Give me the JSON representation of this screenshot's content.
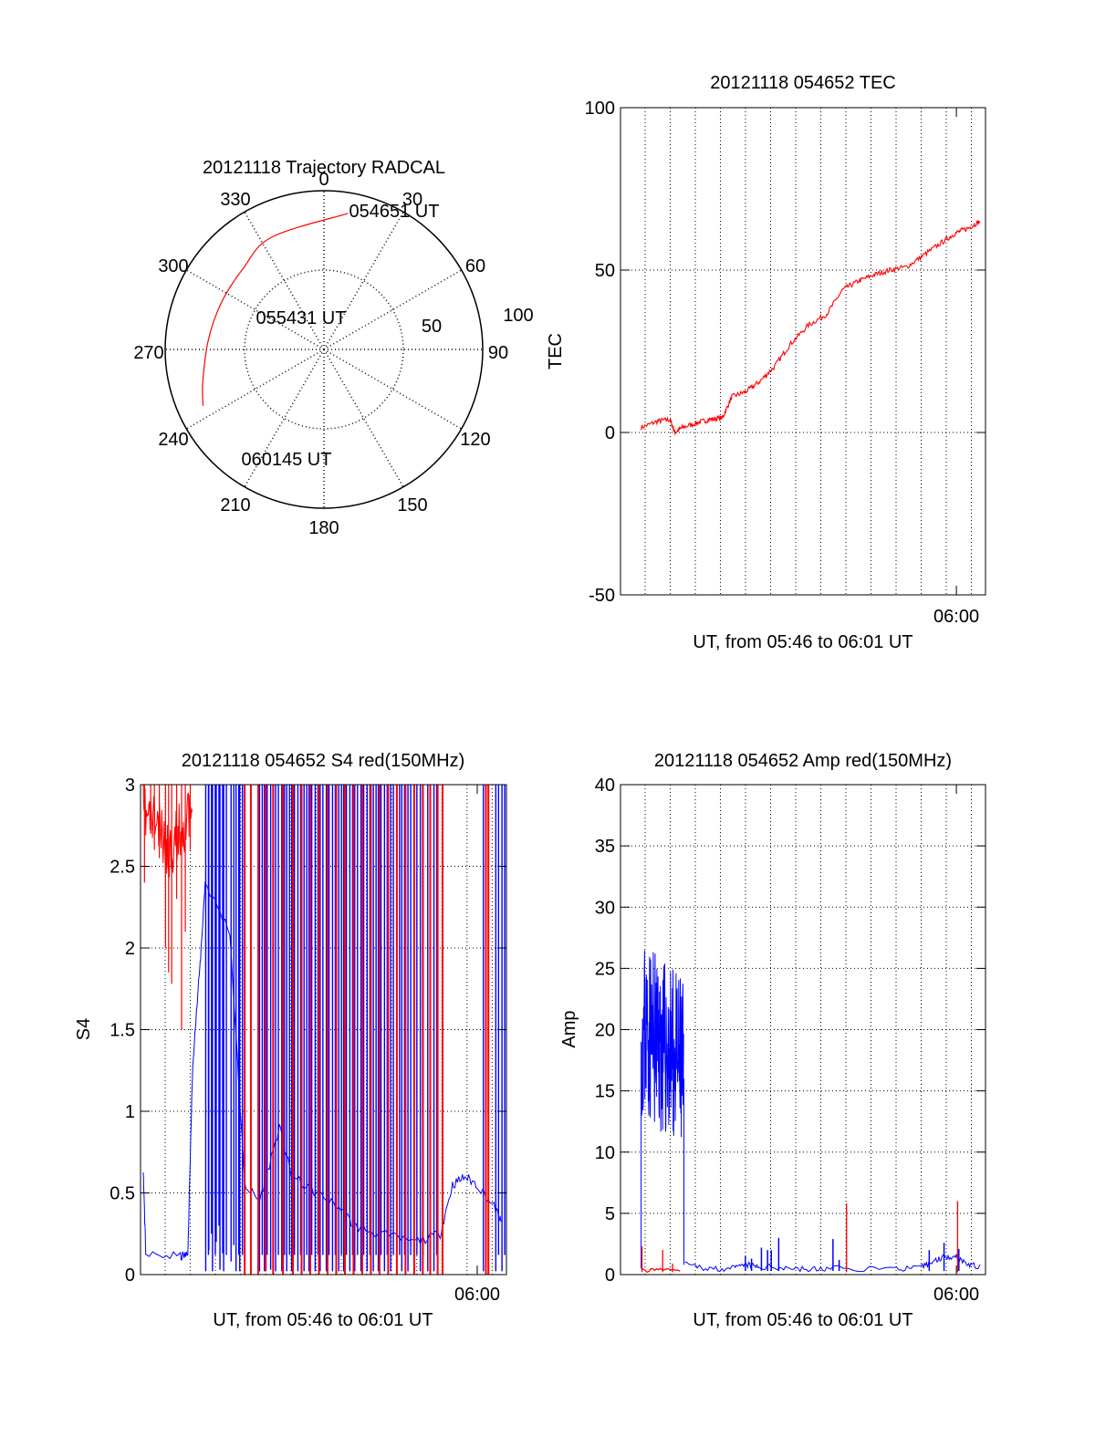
{
  "chart_data": [
    {
      "id": "polar",
      "type": "scatter",
      "title": "20121118 Trajectory RADCAL",
      "azimuth_labels": [
        "0",
        "30",
        "60",
        "90",
        "120",
        "150",
        "180",
        "210",
        "240",
        "270",
        "300",
        "330"
      ],
      "radial_labels": [
        "50",
        "100"
      ],
      "rlim": [
        0,
        100
      ],
      "grid": true,
      "series": [
        {
          "color": "#ff0000",
          "points": [
            {
              "az": 10,
              "r": 87
            },
            {
              "az": 335,
              "r": 78
            },
            {
              "az": 315,
              "r": 72
            },
            {
              "az": 295,
              "r": 71
            },
            {
              "az": 275,
              "r": 73
            },
            {
              "az": 255,
              "r": 79
            },
            {
              "az": 245,
              "r": 84
            }
          ]
        }
      ],
      "annotations": [
        {
          "text": "054651 UT",
          "az": 18,
          "r": 88
        },
        {
          "text": "055431 UT",
          "az": 299,
          "r": 16
        },
        {
          "text": "060145 UT",
          "az": 221,
          "r": 75
        }
      ]
    },
    {
      "id": "tec",
      "type": "line",
      "title": "20121118 054652 TEC",
      "xlabel": "UT, from 05:46 to 06:01 UT",
      "ylabel": "TEC",
      "xlim": [
        5.7278,
        6.0236
      ],
      "ylim": [
        -50,
        100
      ],
      "yticks": [
        "-50",
        "0",
        "50",
        "100"
      ],
      "xticks": [
        {
          "value": 6.0,
          "label": "06:00"
        }
      ],
      "grid": true,
      "series": [
        {
          "color": "#ff0000",
          "x": [
            5.7445,
            5.758,
            5.768,
            5.7718,
            5.7778,
            5.79,
            5.8,
            5.8105,
            5.818,
            5.829,
            5.84,
            5.852,
            5.865,
            5.88,
            5.895,
            5.908,
            5.92,
            5.933,
            5.946,
            5.96,
            5.975,
            5.99,
            6.0,
            6.01,
            6.019
          ],
          "values": [
            1.5,
            3.5,
            4.0,
            0.0,
            1.5,
            3.0,
            4.0,
            4.5,
            11.0,
            12.5,
            15.5,
            20.0,
            27.0,
            33.0,
            36.5,
            44.0,
            46.5,
            48.5,
            50.0,
            51.0,
            55.0,
            59.0,
            61.5,
            63.0,
            65.0
          ]
        }
      ]
    },
    {
      "id": "s4",
      "type": "line",
      "title": "20121118 054652 S4 red(150MHz)",
      "xlabel": "UT, from 05:46 to 06:01 UT",
      "ylabel": "S4",
      "xlim": [
        5.7278,
        6.0236
      ],
      "ylim": [
        0,
        3
      ],
      "yticks": [
        "0",
        "0.5",
        "1",
        "1.5",
        "2",
        "2.5",
        "3"
      ],
      "xticks": [
        {
          "value": 6.0,
          "label": "06:00"
        }
      ],
      "grid": true,
      "series": [
        {
          "color": "#0000ff",
          "base": [
            [
              5.73,
              0.65
            ],
            [
              5.732,
              0.12
            ],
            [
              5.76,
              0.11
            ],
            [
              5.766,
              0.12
            ],
            [
              5.77,
              1.3
            ],
            [
              5.776,
              1.9
            ],
            [
              5.78,
              2.4
            ],
            [
              5.8,
              2.1
            ],
            [
              5.812,
              0.55
            ],
            [
              5.824,
              0.45
            ],
            [
              5.84,
              0.9
            ],
            [
              5.85,
              0.6
            ],
            [
              5.87,
              0.5
            ],
            [
              5.89,
              0.4
            ],
            [
              5.9,
              0.3
            ],
            [
              5.92,
              0.25
            ],
            [
              5.95,
              0.2
            ],
            [
              5.97,
              0.25
            ],
            [
              5.98,
              0.55
            ],
            [
              5.99,
              0.6
            ],
            [
              6.0,
              0.55
            ],
            [
              6.015,
              0.4
            ],
            [
              6.02,
              0.3
            ]
          ],
          "spikes": [
            [
              5.7805,
              0.02
            ],
            [
              5.783,
              0.15
            ],
            [
              5.786,
              0.02
            ],
            [
              5.789,
              0.2
            ],
            [
              5.792,
              0.03
            ],
            [
              5.795,
              0.02
            ],
            [
              5.801,
              0.08
            ],
            [
              5.805,
              0.02
            ],
            [
              5.808,
              0.02
            ],
            [
              5.824,
              0.02
            ],
            [
              5.828,
              0.02
            ],
            [
              5.833,
              0.03
            ],
            [
              5.837,
              0.02
            ],
            [
              5.842,
              0.02
            ],
            [
              5.846,
              0.02
            ],
            [
              5.85,
              0.02
            ],
            [
              5.855,
              0.02
            ],
            [
              5.86,
              0.02
            ],
            [
              5.864,
              0.02
            ],
            [
              5.869,
              0.02
            ],
            [
              5.873,
              0.02
            ],
            [
              5.878,
              0.02
            ],
            [
              5.883,
              0.02
            ],
            [
              5.888,
              0.02
            ],
            [
              5.892,
              0.02
            ],
            [
              5.897,
              0.02
            ],
            [
              5.901,
              0.02
            ],
            [
              5.906,
              0.02
            ],
            [
              5.911,
              0.02
            ],
            [
              5.916,
              0.02
            ],
            [
              5.92,
              0.02
            ],
            [
              5.925,
              0.02
            ],
            [
              5.93,
              0.02
            ],
            [
              5.935,
              0.02
            ],
            [
              5.939,
              0.02
            ],
            [
              5.944,
              0.02
            ],
            [
              5.949,
              0.02
            ],
            [
              5.954,
              0.02
            ],
            [
              5.96,
              0.02
            ],
            [
              5.965,
              0.02
            ],
            [
              6.005,
              0.02
            ],
            [
              6.015,
              0.02
            ],
            [
              6.02,
              0.02
            ]
          ]
        },
        {
          "color": "#ff0000",
          "base": [
            [
              5.73,
              3.0
            ],
            [
              5.74,
              2.95
            ],
            [
              5.75,
              2.75
            ],
            [
              5.76,
              2.9
            ],
            [
              5.77,
              3.0
            ]
          ],
          "drops": [
            [
              5.731,
              2.4
            ],
            [
              5.736,
              2.7
            ],
            [
              5.739,
              2.6
            ],
            [
              5.743,
              2.55
            ],
            [
              5.748,
              2.0
            ],
            [
              5.7505,
              1.85
            ],
            [
              5.753,
              1.78
            ],
            [
              5.757,
              2.3
            ],
            [
              5.761,
              1.5
            ],
            [
              5.764,
              2.1
            ],
            [
              5.768,
              2.6
            ]
          ],
          "bars": [
            [
              5.812,
              0.0
            ],
            [
              5.817,
              0.0
            ],
            [
              5.823,
              0.0
            ],
            [
              5.829,
              0.02
            ],
            [
              5.835,
              0.0
            ],
            [
              5.843,
              0.0
            ],
            [
              5.851,
              0.0
            ],
            [
              5.858,
              0.0
            ],
            [
              5.865,
              0.0
            ],
            [
              5.872,
              0.0
            ],
            [
              5.879,
              0.0
            ],
            [
              5.886,
              0.0
            ],
            [
              5.893,
              0.0
            ],
            [
              5.9,
              0.0
            ],
            [
              5.907,
              0.0
            ],
            [
              5.914,
              0.0
            ],
            [
              5.921,
              0.0
            ],
            [
              5.928,
              0.0
            ],
            [
              5.935,
              0.0
            ],
            [
              5.942,
              0.0
            ],
            [
              5.949,
              0.0
            ],
            [
              5.956,
              0.0
            ],
            [
              5.962,
              0.0
            ],
            [
              5.968,
              0.0
            ],
            [
              5.972,
              0.0
            ],
            [
              6.007,
              0.0
            ],
            [
              6.009,
              0.0
            ]
          ]
        }
      ]
    },
    {
      "id": "amp",
      "type": "line",
      "title": "20121118 054652 Amp red(150MHz)",
      "xlabel": "UT, from 05:46 to 06:01 UT",
      "ylabel": "Amp",
      "xlim": [
        5.7278,
        6.0236
      ],
      "ylim": [
        0,
        40
      ],
      "yticks": [
        "0",
        "5",
        "10",
        "15",
        "20",
        "25",
        "30",
        "35",
        "40"
      ],
      "xticks": [
        {
          "value": 6.0,
          "label": "06:00"
        }
      ],
      "grid": true,
      "series": [
        {
          "color": "#0000ff",
          "base": [
            [
              5.744,
              0.5
            ],
            [
              5.745,
              19.0
            ],
            [
              5.75,
              18.5
            ],
            [
              5.755,
              18.0
            ],
            [
              5.76,
              17.5
            ],
            [
              5.765,
              17.0
            ],
            [
              5.77,
              16.5
            ],
            [
              5.776,
              16.0
            ],
            [
              5.779,
              16.0
            ],
            [
              5.78,
              0.8
            ],
            [
              5.8,
              0.5
            ],
            [
              5.82,
              0.5
            ],
            [
              5.83,
              0.8
            ],
            [
              5.84,
              0.6
            ],
            [
              5.86,
              0.6
            ],
            [
              5.88,
              0.4
            ],
            [
              5.9,
              0.5
            ],
            [
              5.95,
              0.5
            ],
            [
              5.97,
              0.5
            ],
            [
              5.98,
              1.0
            ],
            [
              5.99,
              1.5
            ],
            [
              6.0,
              1.5
            ],
            [
              6.01,
              0.8
            ],
            [
              6.02,
              0.6
            ]
          ],
          "band": [
            {
              "x0": 5.745,
              "x1": 5.779,
              "lo": [
                13.0,
                9.5
              ],
              "hi": [
                27.5,
                24.0
              ]
            }
          ],
          "spikes": [
            [
              5.829,
              1.5
            ],
            [
              5.834,
              1.3
            ],
            [
              5.842,
              2.2
            ],
            [
              5.847,
              2.0
            ],
            [
              5.85,
              2.0
            ],
            [
              5.856,
              3.0
            ],
            [
              5.9,
              2.9
            ],
            [
              5.905,
              1.2
            ],
            [
              5.978,
              2.0
            ],
            [
              5.99,
              2.6
            ],
            [
              6.002,
              2.1
            ]
          ]
        },
        {
          "color": "#ff0000",
          "base": [
            [
              5.745,
              0.3
            ],
            [
              5.76,
              0.4
            ],
            [
              5.778,
              0.3
            ]
          ],
          "spikes": [
            [
              5.7452,
              2.3
            ],
            [
              5.762,
              2.0
            ],
            [
              5.77,
              0.9
            ],
            [
              5.911,
              5.8
            ],
            [
              6.001,
              6.0
            ]
          ]
        }
      ]
    }
  ]
}
